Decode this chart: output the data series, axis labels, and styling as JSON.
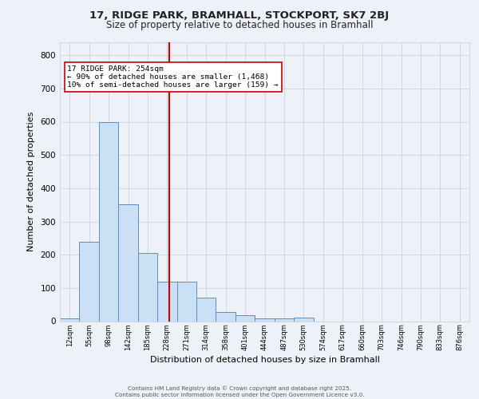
{
  "title_line1": "17, RIDGE PARK, BRAMHALL, STOCKPORT, SK7 2BJ",
  "title_line2": "Size of property relative to detached houses in Bramhall",
  "xlabel": "Distribution of detached houses by size in Bramhall",
  "ylabel": "Number of detached properties",
  "bar_labels": [
    "12sqm",
    "55sqm",
    "98sqm",
    "142sqm",
    "185sqm",
    "228sqm",
    "271sqm",
    "314sqm",
    "358sqm",
    "401sqm",
    "444sqm",
    "487sqm",
    "530sqm",
    "574sqm",
    "617sqm",
    "660sqm",
    "703sqm",
    "746sqm",
    "790sqm",
    "833sqm",
    "876sqm"
  ],
  "bar_values": [
    8,
    240,
    598,
    352,
    205,
    118,
    118,
    72,
    27,
    18,
    8,
    8,
    12,
    0,
    0,
    0,
    0,
    0,
    0,
    0,
    0
  ],
  "bar_color": "#cce0f5",
  "bar_edge_color": "#5b8ec4",
  "grid_color": "#d0d8e8",
  "background_color": "#eef2f8",
  "red_line_x": 5.605,
  "annotation_text": "17 RIDGE PARK: 254sqm\n← 90% of detached houses are smaller (1,468)\n10% of semi-detached houses are larger (159) →",
  "annotation_box_color": "#ffffff",
  "annotation_box_edge": "#cc0000",
  "footer_line1": "Contains HM Land Registry data © Crown copyright and database right 2025.",
  "footer_line2": "Contains public sector information licensed under the Open Government Licence v3.0.",
  "ylim": [
    0,
    840
  ],
  "yticks": [
    0,
    100,
    200,
    300,
    400,
    500,
    600,
    700,
    800
  ]
}
